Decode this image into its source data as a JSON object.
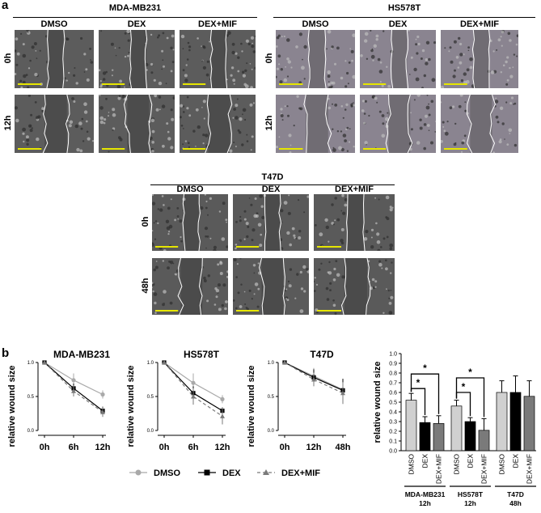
{
  "panels": {
    "a": "a",
    "b": "b"
  },
  "micrograph_groups": [
    {
      "cell_line": "MDA-MB231",
      "conditions": [
        "DMSO",
        "DEX",
        "DEX+MIF"
      ],
      "times": [
        "0h",
        "12h"
      ],
      "tone": "#5c5c5c"
    },
    {
      "cell_line": "HS578T",
      "conditions": [
        "DMSO",
        "DEX",
        "DEX+MIF"
      ],
      "times": [
        "0h",
        "12h"
      ],
      "tone": "#8a8490"
    },
    {
      "cell_line": "T47D",
      "conditions": [
        "DMSO",
        "DEX",
        "DEX+MIF"
      ],
      "times": [
        "0h",
        "48h"
      ],
      "tone": "#5a5a5a"
    }
  ],
  "line_legend": [
    "DMSO",
    "DEX",
    "DEX+MIF"
  ],
  "bar_groups": [
    {
      "line": "MDA-MB231",
      "time": "12h"
    },
    {
      "line": "HS578T",
      "time": "12h"
    },
    {
      "line": "T47D",
      "time": "48h"
    }
  ],
  "significance_marker": "*",
  "colors": {
    "dmso": "#a9a9a9",
    "dex": "#000000",
    "dexmif": "#7a7a7a",
    "scale_bar": "#e6e600",
    "wound_line": "#ffffff"
  },
  "chart_data": [
    {
      "type": "line",
      "title": "MDA-MB231",
      "ylabel": "relative wound size",
      "categories": [
        "0h",
        "6h",
        "12h"
      ],
      "ylim": [
        0,
        1.0
      ],
      "series": [
        {
          "name": "DMSO",
          "values": [
            1.0,
            0.74,
            0.53
          ],
          "errors": [
            0,
            0.1,
            0.06
          ]
        },
        {
          "name": "DEX",
          "values": [
            1.0,
            0.62,
            0.29
          ],
          "errors": [
            0,
            0.07,
            0.06
          ]
        },
        {
          "name": "DEX+MIF",
          "values": [
            1.0,
            0.58,
            0.27
          ],
          "errors": [
            0,
            0.08,
            0.07
          ]
        }
      ]
    },
    {
      "type": "line",
      "title": "HS578T",
      "ylabel": "relative wound size",
      "categories": [
        "0h",
        "6h",
        "12h"
      ],
      "ylim": [
        0,
        1.0
      ],
      "series": [
        {
          "name": "DMSO",
          "values": [
            1.0,
            0.7,
            0.46
          ],
          "errors": [
            0,
            0.14,
            0.06
          ]
        },
        {
          "name": "DEX",
          "values": [
            1.0,
            0.55,
            0.29
          ],
          "errors": [
            0,
            0.1,
            0.05
          ]
        },
        {
          "name": "DEX+MIF",
          "values": [
            1.0,
            0.5,
            0.21
          ],
          "errors": [
            0,
            0.12,
            0.12
          ]
        }
      ]
    },
    {
      "type": "line",
      "title": "T47D",
      "ylabel": "relative wound size",
      "categories": [
        "0h",
        "12h",
        "48h"
      ],
      "ylim": [
        0,
        1.0
      ],
      "series": [
        {
          "name": "DMSO",
          "values": [
            1.0,
            0.8,
            0.6
          ],
          "errors": [
            0,
            0.12,
            0.12
          ]
        },
        {
          "name": "DEX",
          "values": [
            1.0,
            0.78,
            0.59
          ],
          "errors": [
            0,
            0.12,
            0.17
          ]
        },
        {
          "name": "DEX+MIF",
          "values": [
            1.0,
            0.75,
            0.55
          ],
          "errors": [
            0,
            0.1,
            0.16
          ]
        }
      ]
    },
    {
      "type": "bar",
      "ylabel": "relative wound size",
      "categories": [
        "DMSO",
        "DEX",
        "DEX+MIF",
        "DMSO",
        "DEX",
        "DEX+MIF",
        "DMSO",
        "DEX",
        "DEX+MIF"
      ],
      "yticks": [
        "0.0",
        "0.1",
        "0.2",
        "0.3",
        "0.4",
        "0.5",
        "0.6",
        "0.7",
        "0.8",
        "0.9",
        "1.0"
      ],
      "ylim": [
        0,
        1.0
      ],
      "values": [
        0.52,
        0.29,
        0.28,
        0.46,
        0.3,
        0.21,
        0.6,
        0.6,
        0.56
      ],
      "errors": [
        0.07,
        0.06,
        0.08,
        0.06,
        0.04,
        0.12,
        0.12,
        0.17,
        0.16
      ],
      "significance": [
        [
          0,
          1,
          "*"
        ],
        [
          0,
          2,
          "*"
        ],
        [
          3,
          4,
          "*"
        ],
        [
          3,
          5,
          "*"
        ]
      ]
    }
  ]
}
